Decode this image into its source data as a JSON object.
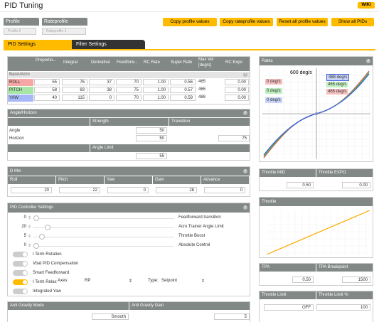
{
  "page": {
    "title": "PID Tuning",
    "wiki": "WIKI"
  },
  "profile": {
    "label": "Profile",
    "value": "Profile 2"
  },
  "rateprofile": {
    "label": "Rateprofile",
    "value": "Rateprofile 1"
  },
  "buttons": {
    "copy_profile": "Copy profile values",
    "copy_rateprofile": "Copy rateprofile values",
    "reset_all": "Reset all profile values",
    "show_all": "Show all PIDs"
  },
  "tabs": {
    "pid": "PID Settings",
    "filter": "Filter Settings"
  },
  "pid_table": {
    "headers": [
      "Proportio...",
      "Integral",
      "Derivative",
      "Feedforw...",
      "RC Rate",
      "Super Rate",
      "Max Vel [deg/s]",
      "RC Expo"
    ],
    "section": "Basic/Acro",
    "rows": [
      {
        "name": "ROLL",
        "color": "#f7a6a6",
        "p": "55",
        "i": "76",
        "d": "37",
        "ff": "70",
        "rc": "1.00",
        "sr": "0.56",
        "mv": "465",
        "expo": "0.00"
      },
      {
        "name": "PITCH",
        "color": "#a6e6a6",
        "p": "58",
        "i": "83",
        "d": "38",
        "ff": "75",
        "rc": "1.00",
        "sr": "0.57",
        "mv": "465",
        "expo": "0.00"
      },
      {
        "name": "YAW",
        "color": "#a6b8f7",
        "p": "40",
        "i": "115",
        "d": "0",
        "ff": "70",
        "rc": "1.00",
        "sr": "0.59",
        "mv": "488",
        "expo": "0.00"
      }
    ]
  },
  "angle": {
    "title": "Angle/Horizon",
    "strength": "Strength",
    "transition": "Transition",
    "angle_label": "Angle",
    "angle_val": "50",
    "horizon_label": "Horizon",
    "horizon_val": "50",
    "transition_val": "75",
    "limit_label": "Angle Limit",
    "limit_val": "55"
  },
  "dmin": {
    "title": "D Min",
    "cols": [
      "Roll",
      "Pitch",
      "Yaw",
      "Gain",
      "Advance"
    ],
    "vals": [
      "20",
      "22",
      "0",
      "28",
      "0"
    ]
  },
  "controller": {
    "title": "PID Controller Settings",
    "sliders": [
      {
        "value": "0",
        "label": "Feedforward transition",
        "pos": 0.0
      },
      {
        "value": "20",
        "label": "Acro Trainer Angle Limit",
        "pos": 0.08
      },
      {
        "value": "5",
        "label": "Throttle Boost",
        "pos": 0.04
      },
      {
        "value": "0",
        "label": "Absolute Control",
        "pos": 0.0
      }
    ],
    "toggles": [
      {
        "label": "I Term Rotation",
        "on": false
      },
      {
        "label": "Vbat PID Compensation",
        "on": false
      },
      {
        "label": "Smart Feedforward",
        "on": false
      },
      {
        "label": "I Term Relax",
        "on": true
      },
      {
        "label": "Integrated Yaw",
        "on": false
      }
    ],
    "axes_label": "Axes:",
    "axes_value": "RP",
    "type_label": "Type:",
    "type_value": "Setpoint"
  },
  "antigravity": {
    "mode_label": "Anti Gravity Mode",
    "mode_value": "Smooth",
    "gain_label": "Anti Gravity Gain",
    "gain_value": "5"
  },
  "rates": {
    "title": "Rates",
    "max": "600 deg/s",
    "left_vals": [
      "0 deg/s",
      "0 deg/s",
      "0 deg/s"
    ],
    "right_vals": [
      "488 deg/s",
      "465 deg/s",
      "465 deg/s"
    ]
  },
  "throttle": {
    "mid_label": "Throttle MID",
    "expo_label": "Throttle EXPO",
    "mid_val": "0.50",
    "expo_val": "0.00",
    "title": "Throttle",
    "tpa_label": "TPA",
    "tpa_bp_label": "TPA Breakpoint",
    "tpa_val": "0.50",
    "tpa_bp_val": "1500",
    "limit_label": "Throttle Limit",
    "limit_pct_label": "Throttle Limit %",
    "limit_val": "OFF",
    "limit_pct_val": "100"
  }
}
